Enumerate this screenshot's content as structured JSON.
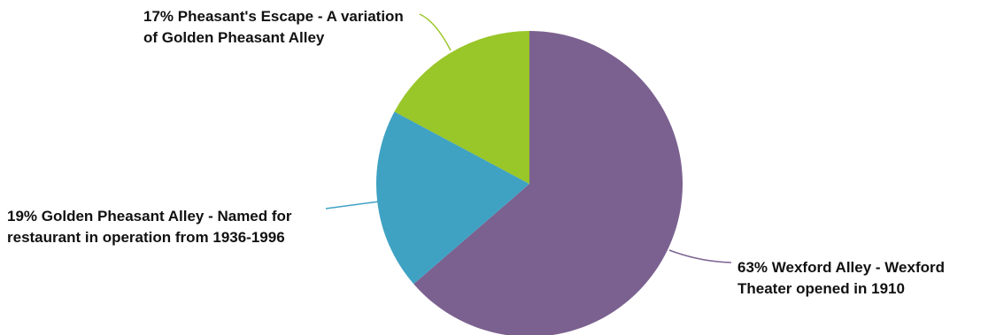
{
  "chart_data": {
    "type": "pie",
    "title": "",
    "start_angle_deg": 0,
    "direction": "clockwise",
    "slices": [
      {
        "percent_label": "63%",
        "label": "Wexford Alley - Wexford Theater opened in 1910",
        "value": 63,
        "color": "#7b6190"
      },
      {
        "percent_label": "19%",
        "label": "Golden Pheasant Alley - Named for restaurant in operation from 1936-1996",
        "value": 19,
        "color": "#3fa2c3"
      },
      {
        "percent_label": "17%",
        "label": "Pheasant's Escape - A variation of Golden Pheasant Alley",
        "value": 17,
        "color": "#99c628"
      }
    ]
  }
}
